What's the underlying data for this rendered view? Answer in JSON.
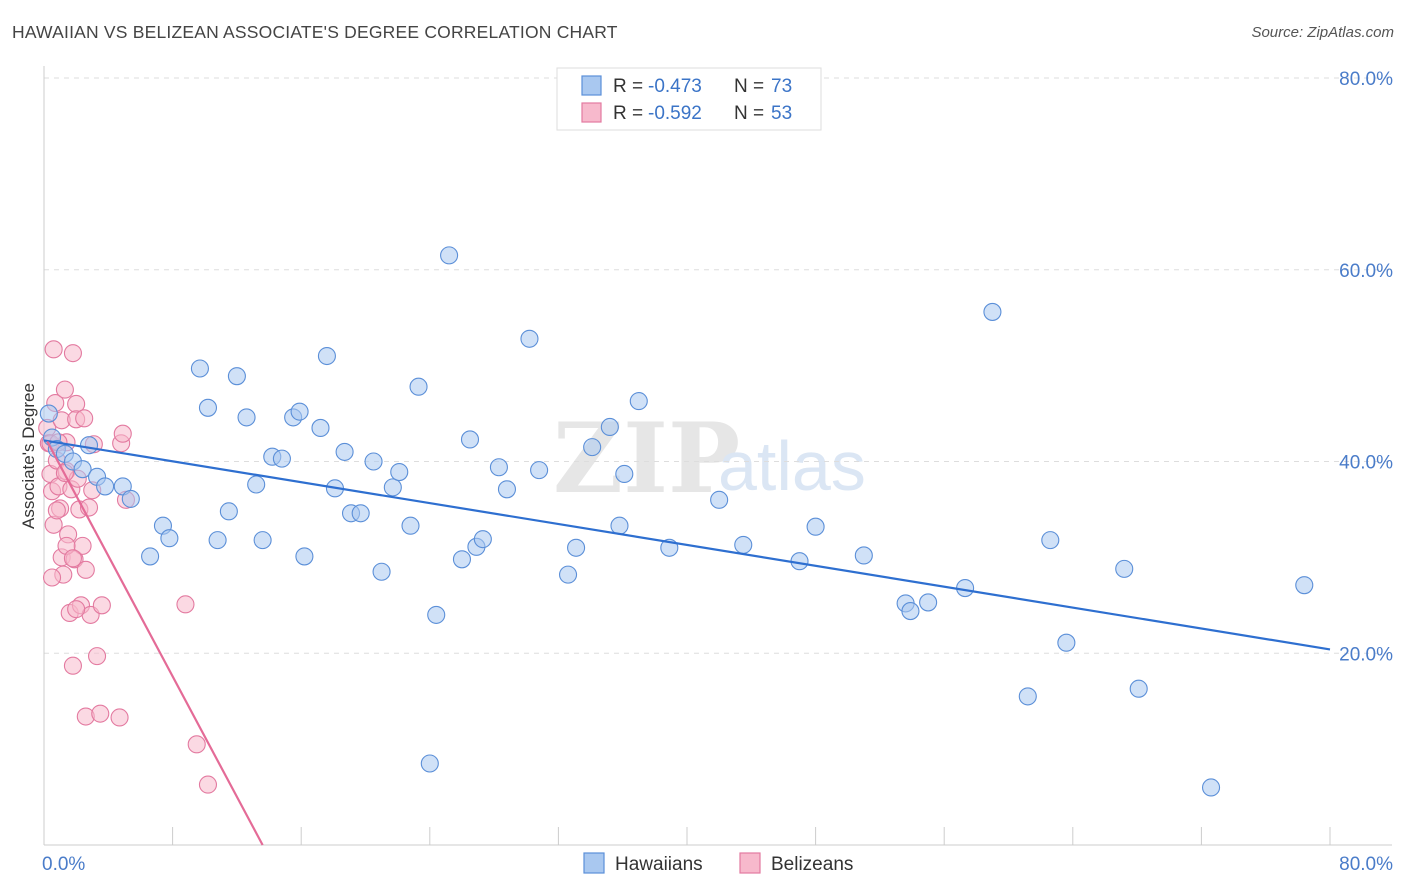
{
  "header": {
    "title": "HAWAIIAN VS BELIZEAN ASSOCIATE'S DEGREE CORRELATION CHART",
    "source": "Source: ZipAtlas.com"
  },
  "watermark": {
    "zip": "ZIP",
    "atlas": "atlas"
  },
  "colors": {
    "hawaiians_fill": "#a9c8f0",
    "hawaiians_stroke": "#5b8fd8",
    "hawaiians_line": "#2e6fd0",
    "belizeans_fill": "#f7b9cc",
    "belizeans_stroke": "#e37aa0",
    "belizeans_line": "#e46b97",
    "grid": "#dddddd",
    "tick": "#4a7cc9"
  },
  "legend_top": {
    "rows": [
      {
        "r_label": "R = ",
        "r_value": "-0.473",
        "n_label": "N = ",
        "n_value": "73"
      },
      {
        "r_label": "R = ",
        "r_value": "-0.592",
        "n_label": "N = ",
        "n_value": "53"
      }
    ]
  },
  "chart_data": {
    "type": "scatter",
    "title": "HAWAIIAN VS BELIZEAN ASSOCIATE'S DEGREE CORRELATION CHART",
    "xlabel": "",
    "ylabel": "Associate's Degree",
    "xlim": [
      0,
      80
    ],
    "ylim": [
      0,
      80
    ],
    "x_tick_labels": [
      "0.0%",
      "80.0%"
    ],
    "y_ticks": [
      20,
      40,
      60,
      80
    ],
    "y_tick_labels": [
      "20.0%",
      "40.0%",
      "60.0%",
      "80.0%"
    ],
    "legend": [
      "Hawaiians",
      "Belizeans"
    ],
    "series": [
      {
        "name": "Hawaiians",
        "r": -0.473,
        "n": 73,
        "trend": {
          "x": [
            0,
            80
          ],
          "y": [
            42.2,
            20.4
          ]
        },
        "points": [
          [
            0.3,
            45.0
          ],
          [
            0.5,
            42.5
          ],
          [
            0.8,
            41.3
          ],
          [
            1.3,
            40.8
          ],
          [
            1.8,
            40.0
          ],
          [
            2.4,
            39.2
          ],
          [
            2.8,
            41.7
          ],
          [
            3.3,
            38.4
          ],
          [
            3.8,
            37.4
          ],
          [
            4.9,
            37.4
          ],
          [
            5.4,
            36.1
          ],
          [
            6.6,
            30.1
          ],
          [
            7.4,
            33.3
          ],
          [
            7.8,
            32.0
          ],
          [
            9.7,
            49.7
          ],
          [
            10.2,
            45.6
          ],
          [
            10.8,
            31.8
          ],
          [
            11.5,
            34.8
          ],
          [
            12.0,
            48.9
          ],
          [
            12.6,
            44.6
          ],
          [
            13.2,
            37.6
          ],
          [
            13.6,
            31.8
          ],
          [
            14.2,
            40.5
          ],
          [
            14.8,
            40.3
          ],
          [
            15.5,
            44.6
          ],
          [
            15.9,
            45.2
          ],
          [
            16.2,
            30.1
          ],
          [
            17.2,
            43.5
          ],
          [
            17.6,
            51.0
          ],
          [
            18.1,
            37.2
          ],
          [
            18.7,
            41.0
          ],
          [
            19.1,
            34.6
          ],
          [
            19.7,
            34.6
          ],
          [
            20.5,
            40.0
          ],
          [
            21.0,
            28.5
          ],
          [
            21.7,
            37.3
          ],
          [
            22.1,
            38.9
          ],
          [
            22.8,
            33.3
          ],
          [
            23.3,
            47.8
          ],
          [
            24.4,
            24.0
          ],
          [
            25.2,
            61.5
          ],
          [
            26.0,
            29.8
          ],
          [
            26.5,
            42.3
          ],
          [
            26.9,
            31.1
          ],
          [
            27.3,
            31.9
          ],
          [
            28.3,
            39.4
          ],
          [
            28.8,
            37.1
          ],
          [
            30.2,
            52.8
          ],
          [
            30.8,
            39.1
          ],
          [
            32.6,
            28.2
          ],
          [
            33.1,
            31.0
          ],
          [
            34.1,
            41.5
          ],
          [
            35.2,
            43.6
          ],
          [
            35.8,
            33.3
          ],
          [
            36.1,
            38.7
          ],
          [
            37.0,
            46.3
          ],
          [
            38.9,
            31.0
          ],
          [
            42.0,
            36.0
          ],
          [
            43.5,
            31.3
          ],
          [
            47.0,
            29.6
          ],
          [
            48.0,
            33.2
          ],
          [
            51.0,
            30.2
          ],
          [
            53.6,
            25.2
          ],
          [
            53.9,
            24.4
          ],
          [
            55.0,
            25.3
          ],
          [
            57.3,
            26.8
          ],
          [
            59.0,
            55.6
          ],
          [
            62.6,
            31.8
          ],
          [
            63.6,
            21.1
          ],
          [
            67.2,
            28.8
          ],
          [
            68.1,
            16.3
          ],
          [
            61.2,
            15.5
          ],
          [
            72.6,
            6.0
          ],
          [
            24.0,
            8.5
          ],
          [
            78.4,
            27.1
          ]
        ]
      },
      {
        "name": "Belizeans",
        "r": -0.592,
        "n": 53,
        "trend": {
          "x": [
            0.2,
            13.6
          ],
          "y": [
            42.1,
            0
          ]
        },
        "points": [
          [
            0.2,
            43.5
          ],
          [
            0.3,
            41.9
          ],
          [
            0.4,
            38.7
          ],
          [
            0.5,
            36.9
          ],
          [
            0.6,
            33.4
          ],
          [
            0.7,
            46.1
          ],
          [
            0.8,
            40.1
          ],
          [
            0.9,
            37.4
          ],
          [
            1.0,
            35.1
          ],
          [
            1.1,
            44.3
          ],
          [
            1.1,
            30.0
          ],
          [
            1.2,
            28.2
          ],
          [
            1.3,
            47.5
          ],
          [
            1.4,
            42.0
          ],
          [
            1.4,
            39.0
          ],
          [
            1.5,
            32.4
          ],
          [
            1.6,
            24.2
          ],
          [
            1.7,
            37.1
          ],
          [
            1.8,
            51.3
          ],
          [
            1.8,
            18.7
          ],
          [
            1.9,
            29.8
          ],
          [
            2.0,
            46.0
          ],
          [
            2.0,
            44.4
          ],
          [
            2.1,
            38.2
          ],
          [
            2.2,
            35.0
          ],
          [
            2.3,
            25.0
          ],
          [
            2.4,
            31.2
          ],
          [
            2.5,
            44.5
          ],
          [
            2.6,
            28.7
          ],
          [
            2.6,
            13.4
          ],
          [
            2.8,
            35.2
          ],
          [
            2.9,
            24.0
          ],
          [
            3.0,
            37.0
          ],
          [
            3.1,
            41.8
          ],
          [
            3.3,
            19.7
          ],
          [
            3.5,
            13.7
          ],
          [
            3.6,
            25.0
          ],
          [
            4.8,
            41.9
          ],
          [
            4.7,
            13.3
          ],
          [
            4.9,
            42.9
          ],
          [
            5.1,
            36.0
          ],
          [
            8.8,
            25.1
          ],
          [
            9.5,
            10.5
          ],
          [
            10.2,
            6.3
          ],
          [
            0.6,
            51.7
          ],
          [
            1.4,
            31.2
          ],
          [
            0.4,
            41.9
          ],
          [
            0.9,
            42.0
          ],
          [
            1.3,
            38.8
          ],
          [
            2.0,
            24.6
          ],
          [
            0.8,
            34.9
          ],
          [
            1.8,
            29.9
          ],
          [
            0.5,
            27.9
          ]
        ]
      }
    ]
  }
}
